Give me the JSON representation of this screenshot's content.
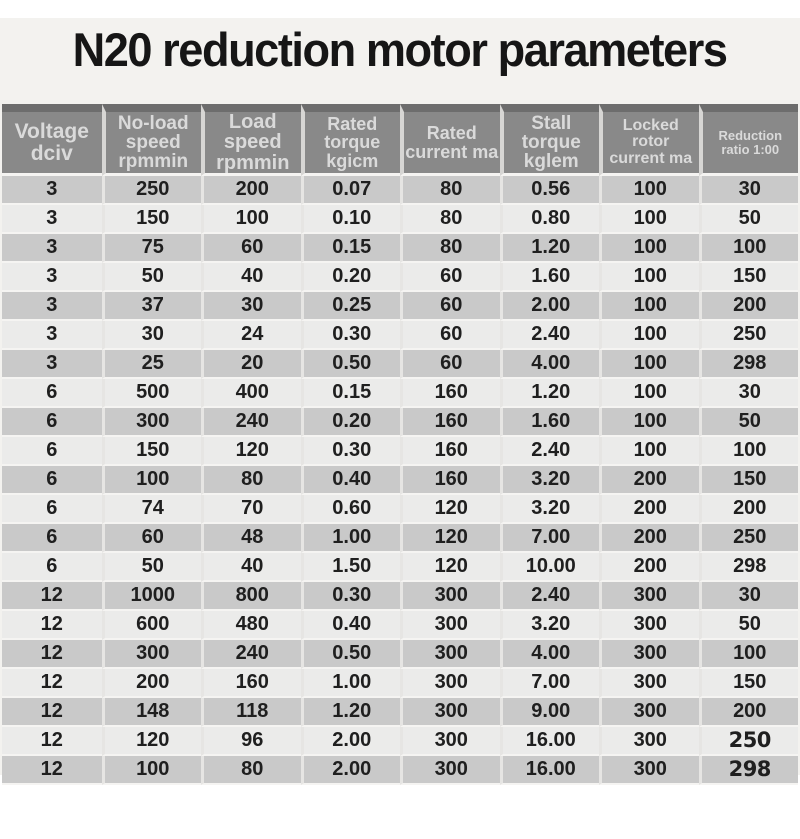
{
  "page": {
    "title": "N20 reduction motor parameters"
  },
  "chart_data": {
    "type": "table",
    "title": "N20 reduction motor parameters",
    "columns": [
      "Voltage dciv",
      "No-load speed rpmmin",
      "Load speed rpmmin",
      "Rated torque kgicm",
      "Rated current ma",
      "Stall torque kglem",
      "Locked rotor current ma",
      "Reduction ratio 1:00"
    ],
    "column_labels_multiline": [
      "Voltage\ndciv",
      "No-load\nspeed\nrpmmin",
      "Load speed\nrpmmin",
      "Rated torque\nkgicm",
      "Rated\ncurrent ma",
      "Stall torque\nkglem",
      "Locked rotor\ncurrent ma",
      "Reduction\nratio 1:00"
    ],
    "rows": [
      [
        "3",
        "250",
        "200",
        "0.07",
        "80",
        "0.56",
        "100",
        "30"
      ],
      [
        "3",
        "150",
        "100",
        "0.10",
        "80",
        "0.80",
        "100",
        "50"
      ],
      [
        "3",
        "75",
        "60",
        "0.15",
        "80",
        "1.20",
        "100",
        "100"
      ],
      [
        "3",
        "50",
        "40",
        "0.20",
        "60",
        "1.60",
        "100",
        "150"
      ],
      [
        "3",
        "37",
        "30",
        "0.25",
        "60",
        "2.00",
        "100",
        "200"
      ],
      [
        "3",
        "30",
        "24",
        "0.30",
        "60",
        "2.40",
        "100",
        "250"
      ],
      [
        "3",
        "25",
        "20",
        "0.50",
        "60",
        "4.00",
        "100",
        "298"
      ],
      [
        "6",
        "500",
        "400",
        "0.15",
        "160",
        "1.20",
        "100",
        "30"
      ],
      [
        "6",
        "300",
        "240",
        "0.20",
        "160",
        "1.60",
        "100",
        "50"
      ],
      [
        "6",
        "150",
        "120",
        "0.30",
        "160",
        "2.40",
        "100",
        "100"
      ],
      [
        "6",
        "100",
        "80",
        "0.40",
        "160",
        "3.20",
        "200",
        "150"
      ],
      [
        "6",
        "74",
        "70",
        "0.60",
        "120",
        "3.20",
        "200",
        "200"
      ],
      [
        "6",
        "60",
        "48",
        "1.00",
        "120",
        "7.00",
        "200",
        "250"
      ],
      [
        "6",
        "50",
        "40",
        "1.50",
        "120",
        "10.00",
        "200",
        "298"
      ],
      [
        "12",
        "1000",
        "800",
        "0.30",
        "300",
        "2.40",
        "300",
        "30"
      ],
      [
        "12",
        "600",
        "480",
        "0.40",
        "300",
        "3.20",
        "300",
        "50"
      ],
      [
        "12",
        "300",
        "240",
        "0.50",
        "300",
        "4.00",
        "300",
        "100"
      ],
      [
        "12",
        "200",
        "160",
        "1.00",
        "300",
        "7.00",
        "300",
        "150"
      ],
      [
        "12",
        "148",
        "118",
        "1.20",
        "300",
        "9.00",
        "300",
        "200"
      ],
      [
        "12",
        "120",
        "96",
        "2.00",
        "300",
        "16.00",
        "300",
        "250"
      ],
      [
        "12",
        "100",
        "80",
        "2.00",
        "300",
        "16.00",
        "300",
        "298"
      ]
    ],
    "layout": {
      "header_bg": "#898989",
      "header_text": "#dadada",
      "row_odd_bg": "#c9c9c9",
      "row_even_bg": "#ebebea",
      "cell_text": "#1f1f1f",
      "panel_bg": "#f3f2ef"
    }
  }
}
